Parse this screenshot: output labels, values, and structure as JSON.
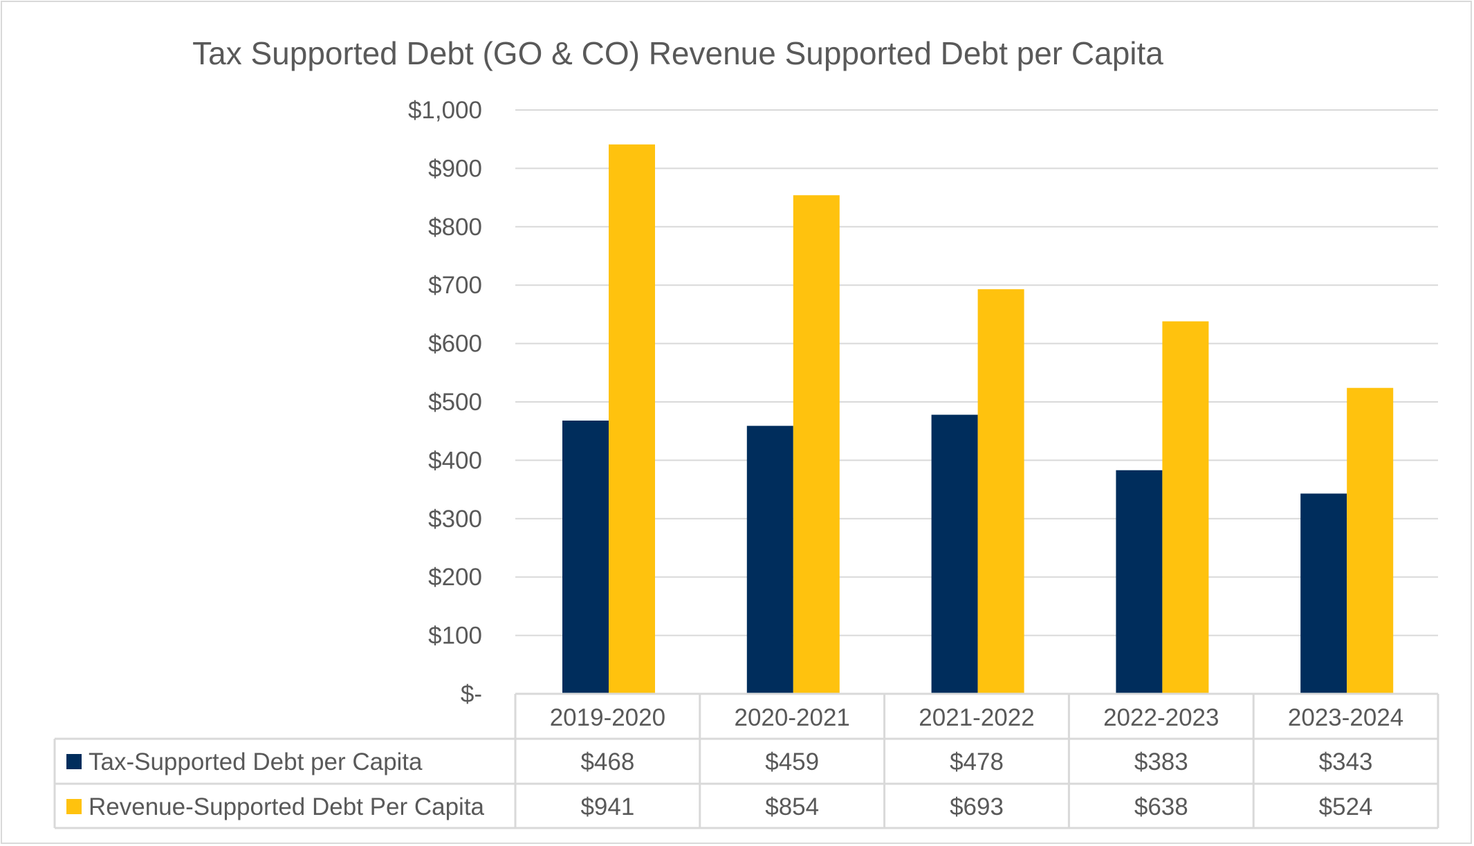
{
  "chart_data": {
    "type": "bar",
    "title": "Tax Supported Debt (GO & CO) Revenue Supported Debt per Capita",
    "categories": [
      "2019-2020",
      "2020-2021",
      "2021-2022",
      "2022-2023",
      "2023-2024"
    ],
    "series": [
      {
        "name": "Tax-Supported Debt per Capita",
        "values": [
          468,
          459,
          478,
          383,
          343
        ],
        "labels": [
          "$468",
          "$459",
          "$478",
          "$383",
          "$343"
        ],
        "color": "#002D5C"
      },
      {
        "name": "Revenue-Supported Debt Per Capita",
        "values": [
          941,
          854,
          693,
          638,
          524
        ],
        "labels": [
          "$941",
          "$854",
          "$693",
          "$638",
          "$524"
        ],
        "color": "#FFC20E"
      }
    ],
    "ylim": [
      0,
      1000
    ],
    "yticks": [
      0,
      100,
      200,
      300,
      400,
      500,
      600,
      700,
      800,
      900,
      1000
    ],
    "ytick_labels": [
      "$-",
      "$100",
      "$200",
      "$300",
      "$400",
      "$500",
      "$600",
      "$700",
      "$800",
      "$900",
      "$1,000"
    ],
    "grid": true,
    "legend": "data-table-below"
  }
}
